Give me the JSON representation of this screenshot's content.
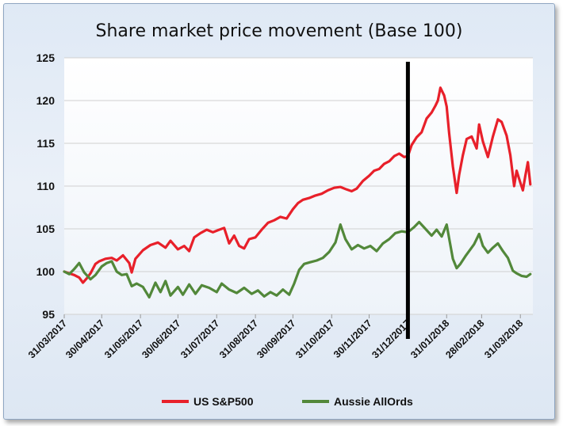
{
  "chart_data": {
    "type": "line",
    "title": "Share market price movement (Base 100)",
    "xlabel": "",
    "ylabel": "",
    "ylim": [
      95,
      125
    ],
    "yticks": [
      95,
      100,
      105,
      110,
      115,
      120,
      125
    ],
    "xlim": [
      "2017-03-31",
      "2018-04-10"
    ],
    "xticks": [
      {
        "date": "2017-03-31",
        "label": "31/03/2017"
      },
      {
        "date": "2017-04-30",
        "label": "30/04/2017"
      },
      {
        "date": "2017-05-31",
        "label": "31/05/2017"
      },
      {
        "date": "2017-06-30",
        "label": "30/06/2017"
      },
      {
        "date": "2017-07-31",
        "label": "31/07/2017"
      },
      {
        "date": "2017-08-31",
        "label": "31/08/2017"
      },
      {
        "date": "2017-09-30",
        "label": "30/09/2017"
      },
      {
        "date": "2017-10-31",
        "label": "31/10/2017"
      },
      {
        "date": "2017-11-30",
        "label": "30/11/2017"
      },
      {
        "date": "2017-12-31",
        "label": "31/12/2017"
      },
      {
        "date": "2018-01-31",
        "label": "31/01/2018"
      },
      {
        "date": "2018-02-28",
        "label": "28/02/2018"
      },
      {
        "date": "2018-03-31",
        "label": "31/03/2018"
      }
    ],
    "grid": true,
    "legend_position": "bottom",
    "annotations": [
      {
        "type": "vertical-line",
        "date": "2017-12-31",
        "color": "#000000"
      }
    ],
    "series": [
      {
        "name": "US S&P500",
        "color": "#e8202a",
        "points": [
          [
            "2017-03-31",
            100.0
          ],
          [
            "2017-04-04",
            99.8
          ],
          [
            "2017-04-08",
            99.6
          ],
          [
            "2017-04-12",
            99.3
          ],
          [
            "2017-04-15",
            98.7
          ],
          [
            "2017-04-18",
            99.2
          ],
          [
            "2017-04-21",
            99.8
          ],
          [
            "2017-04-25",
            100.9
          ],
          [
            "2017-04-28",
            101.2
          ],
          [
            "2017-05-03",
            101.5
          ],
          [
            "2017-05-08",
            101.6
          ],
          [
            "2017-05-12",
            101.3
          ],
          [
            "2017-05-17",
            101.9
          ],
          [
            "2017-05-22",
            101.0
          ],
          [
            "2017-05-24",
            99.9
          ],
          [
            "2017-05-27",
            101.5
          ],
          [
            "2017-06-02",
            102.5
          ],
          [
            "2017-06-08",
            103.1
          ],
          [
            "2017-06-14",
            103.4
          ],
          [
            "2017-06-20",
            102.8
          ],
          [
            "2017-06-24",
            103.6
          ],
          [
            "2017-06-30",
            102.6
          ],
          [
            "2017-07-05",
            103.0
          ],
          [
            "2017-07-09",
            102.4
          ],
          [
            "2017-07-13",
            104.0
          ],
          [
            "2017-07-18",
            104.5
          ],
          [
            "2017-07-23",
            104.9
          ],
          [
            "2017-07-28",
            104.6
          ],
          [
            "2017-08-02",
            104.9
          ],
          [
            "2017-08-06",
            105.1
          ],
          [
            "2017-08-10",
            103.3
          ],
          [
            "2017-08-14",
            104.2
          ],
          [
            "2017-08-18",
            103.0
          ],
          [
            "2017-08-22",
            102.7
          ],
          [
            "2017-08-26",
            103.8
          ],
          [
            "2017-08-31",
            104.0
          ],
          [
            "2017-09-05",
            104.9
          ],
          [
            "2017-09-10",
            105.7
          ],
          [
            "2017-09-15",
            106.0
          ],
          [
            "2017-09-20",
            106.4
          ],
          [
            "2017-09-25",
            106.2
          ],
          [
            "2017-09-30",
            107.3
          ],
          [
            "2017-10-04",
            108.0
          ],
          [
            "2017-10-08",
            108.4
          ],
          [
            "2017-10-13",
            108.6
          ],
          [
            "2017-10-18",
            108.9
          ],
          [
            "2017-10-23",
            109.1
          ],
          [
            "2017-10-28",
            109.5
          ],
          [
            "2017-11-02",
            109.8
          ],
          [
            "2017-11-07",
            109.9
          ],
          [
            "2017-11-12",
            109.6
          ],
          [
            "2017-11-16",
            109.4
          ],
          [
            "2017-11-20",
            109.7
          ],
          [
            "2017-11-25",
            110.6
          ],
          [
            "2017-11-30",
            111.2
          ],
          [
            "2017-12-04",
            111.8
          ],
          [
            "2017-12-08",
            112.0
          ],
          [
            "2017-12-12",
            112.6
          ],
          [
            "2017-12-16",
            112.9
          ],
          [
            "2017-12-20",
            113.5
          ],
          [
            "2017-12-24",
            113.8
          ],
          [
            "2017-12-28",
            113.4
          ],
          [
            "2017-12-31",
            113.5
          ],
          [
            "2018-01-03",
            114.8
          ],
          [
            "2018-01-07",
            115.7
          ],
          [
            "2018-01-11",
            116.3
          ],
          [
            "2018-01-15",
            117.9
          ],
          [
            "2018-01-19",
            118.6
          ],
          [
            "2018-01-22",
            119.4
          ],
          [
            "2018-01-24",
            120.0
          ],
          [
            "2018-01-26",
            121.5
          ],
          [
            "2018-01-29",
            120.6
          ],
          [
            "2018-01-31",
            119.3
          ],
          [
            "2018-02-02",
            116.2
          ],
          [
            "2018-02-05",
            112.3
          ],
          [
            "2018-02-08",
            109.2
          ],
          [
            "2018-02-10",
            111.3
          ],
          [
            "2018-02-13",
            113.6
          ],
          [
            "2018-02-16",
            115.5
          ],
          [
            "2018-02-20",
            115.8
          ],
          [
            "2018-02-24",
            114.4
          ],
          [
            "2018-02-26",
            117.2
          ],
          [
            "2018-03-01",
            115.2
          ],
          [
            "2018-03-05",
            113.4
          ],
          [
            "2018-03-09",
            115.8
          ],
          [
            "2018-03-13",
            117.8
          ],
          [
            "2018-03-16",
            117.5
          ],
          [
            "2018-03-20",
            115.9
          ],
          [
            "2018-03-23",
            113.6
          ],
          [
            "2018-03-26",
            110.0
          ],
          [
            "2018-03-28",
            111.8
          ],
          [
            "2018-03-31",
            110.4
          ],
          [
            "2018-04-02",
            109.5
          ],
          [
            "2018-04-04",
            111.2
          ],
          [
            "2018-04-06",
            112.8
          ],
          [
            "2018-04-08",
            110.2
          ]
        ]
      },
      {
        "name": "Aussie AllOrds",
        "color": "#52883a",
        "points": [
          [
            "2017-03-31",
            100.0
          ],
          [
            "2017-04-04",
            99.7
          ],
          [
            "2017-04-08",
            100.3
          ],
          [
            "2017-04-12",
            101.0
          ],
          [
            "2017-04-16",
            99.9
          ],
          [
            "2017-04-21",
            99.1
          ],
          [
            "2017-04-25",
            99.6
          ],
          [
            "2017-04-30",
            100.6
          ],
          [
            "2017-05-04",
            101.0
          ],
          [
            "2017-05-08",
            101.2
          ],
          [
            "2017-05-12",
            100.0
          ],
          [
            "2017-05-16",
            99.6
          ],
          [
            "2017-05-20",
            99.7
          ],
          [
            "2017-05-24",
            98.3
          ],
          [
            "2017-05-28",
            98.6
          ],
          [
            "2017-06-02",
            98.2
          ],
          [
            "2017-06-07",
            97.0
          ],
          [
            "2017-06-12",
            98.7
          ],
          [
            "2017-06-16",
            97.6
          ],
          [
            "2017-06-20",
            98.9
          ],
          [
            "2017-06-24",
            97.2
          ],
          [
            "2017-06-30",
            98.2
          ],
          [
            "2017-07-04",
            97.3
          ],
          [
            "2017-07-09",
            98.5
          ],
          [
            "2017-07-14",
            97.4
          ],
          [
            "2017-07-19",
            98.4
          ],
          [
            "2017-07-25",
            98.1
          ],
          [
            "2017-07-31",
            97.6
          ],
          [
            "2017-08-04",
            98.6
          ],
          [
            "2017-08-10",
            97.9
          ],
          [
            "2017-08-16",
            97.5
          ],
          [
            "2017-08-22",
            98.1
          ],
          [
            "2017-08-28",
            97.4
          ],
          [
            "2017-09-02",
            97.8
          ],
          [
            "2017-09-07",
            97.1
          ],
          [
            "2017-09-12",
            97.6
          ],
          [
            "2017-09-17",
            97.2
          ],
          [
            "2017-09-22",
            97.9
          ],
          [
            "2017-09-27",
            97.3
          ],
          [
            "2017-10-01",
            98.6
          ],
          [
            "2017-10-05",
            100.2
          ],
          [
            "2017-10-09",
            100.9
          ],
          [
            "2017-10-14",
            101.1
          ],
          [
            "2017-10-19",
            101.3
          ],
          [
            "2017-10-24",
            101.6
          ],
          [
            "2017-10-29",
            102.3
          ],
          [
            "2017-11-03",
            103.4
          ],
          [
            "2017-11-07",
            105.5
          ],
          [
            "2017-11-11",
            103.8
          ],
          [
            "2017-11-16",
            102.6
          ],
          [
            "2017-11-21",
            103.1
          ],
          [
            "2017-11-26",
            102.7
          ],
          [
            "2017-12-01",
            103.0
          ],
          [
            "2017-12-06",
            102.4
          ],
          [
            "2017-12-11",
            103.3
          ],
          [
            "2017-12-16",
            103.8
          ],
          [
            "2017-12-21",
            104.5
          ],
          [
            "2017-12-26",
            104.7
          ],
          [
            "2017-12-31",
            104.6
          ],
          [
            "2018-01-05",
            105.2
          ],
          [
            "2018-01-09",
            105.8
          ],
          [
            "2018-01-14",
            105.0
          ],
          [
            "2018-01-19",
            104.2
          ],
          [
            "2018-01-23",
            104.9
          ],
          [
            "2018-01-27",
            104.1
          ],
          [
            "2018-01-31",
            105.5
          ],
          [
            "2018-02-02",
            103.9
          ],
          [
            "2018-02-05",
            101.5
          ],
          [
            "2018-02-08",
            100.4
          ],
          [
            "2018-02-11",
            100.9
          ],
          [
            "2018-02-15",
            101.8
          ],
          [
            "2018-02-19",
            102.6
          ],
          [
            "2018-02-22",
            103.2
          ],
          [
            "2018-02-26",
            104.4
          ],
          [
            "2018-03-01",
            103.0
          ],
          [
            "2018-03-05",
            102.2
          ],
          [
            "2018-03-09",
            102.8
          ],
          [
            "2018-03-13",
            103.3
          ],
          [
            "2018-03-17",
            102.4
          ],
          [
            "2018-03-21",
            101.6
          ],
          [
            "2018-03-25",
            100.1
          ],
          [
            "2018-03-28",
            99.8
          ],
          [
            "2018-04-01",
            99.5
          ],
          [
            "2018-04-05",
            99.4
          ],
          [
            "2018-04-08",
            99.7
          ]
        ]
      }
    ]
  }
}
